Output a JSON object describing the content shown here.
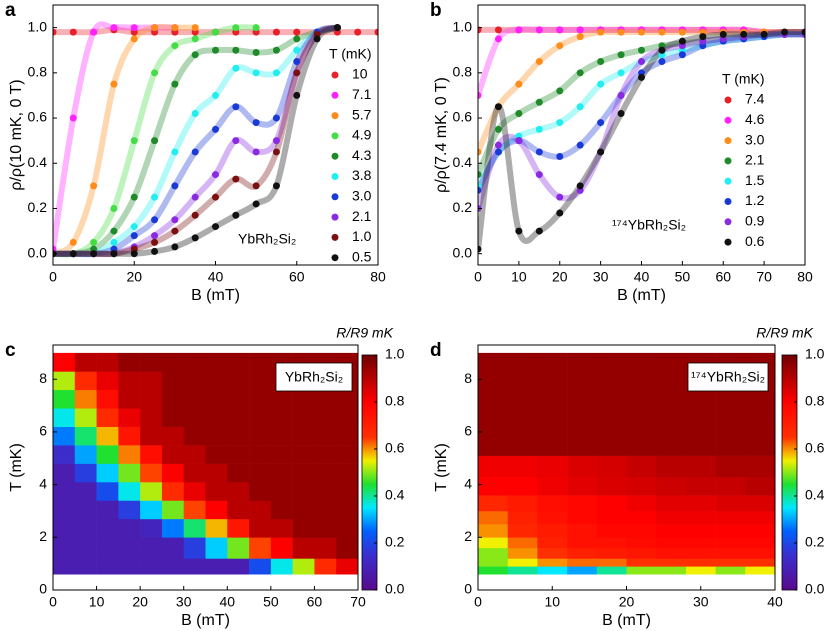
{
  "chart_data": [
    {
      "type": "scatter",
      "panel_label": "a",
      "xlabel": "B (mT)",
      "ylabel": "ρ/ρ(10 mK, 0 T)",
      "annotation": "YbRh₂Si₂",
      "legend_title": "T (mK)",
      "legend": "right",
      "x": [
        0,
        5,
        10,
        15,
        20,
        25,
        30,
        35,
        40,
        45,
        50,
        55,
        60,
        65,
        70,
        75,
        80
      ],
      "series": [
        {
          "name": "10",
          "color": "#e8202a",
          "values": [
            0.98,
            0.98,
            0.98,
            0.99,
            0.98,
            0.98,
            0.98,
            0.98,
            0.98,
            0.98,
            0.98,
            0.98,
            0.98,
            0.98,
            0.98,
            0.98,
            0.98
          ]
        },
        {
          "name": "7.1",
          "color": "#ff22ff",
          "values": [
            0.02,
            0.6,
            0.98,
            1.0,
            1.0,
            1.0,
            1.0,
            null,
            null,
            null,
            null,
            null,
            null,
            null,
            null,
            null,
            null
          ]
        },
        {
          "name": "5.7",
          "color": "#ff8c1a",
          "values": [
            0,
            0.05,
            0.3,
            0.75,
            0.95,
            1.0,
            1.0,
            1.0,
            null,
            null,
            null,
            null,
            null,
            null,
            null,
            null,
            null
          ]
        },
        {
          "name": "4.9",
          "color": "#44dd44",
          "values": [
            0,
            0,
            0.05,
            0.2,
            0.5,
            0.8,
            0.92,
            0.95,
            0.98,
            1.0,
            1.0,
            null,
            null,
            null,
            null,
            null,
            null
          ]
        },
        {
          "name": "4.3",
          "color": "#1e8a2a",
          "values": [
            0,
            0,
            0.02,
            0.1,
            0.25,
            0.5,
            0.75,
            0.88,
            0.9,
            0.9,
            0.89,
            0.9,
            0.95,
            0.98,
            1.0,
            null,
            null
          ]
        },
        {
          "name": "3.8",
          "color": "#22eef0",
          "values": [
            0,
            0,
            0,
            0.05,
            0.12,
            0.25,
            0.45,
            0.62,
            0.7,
            0.82,
            0.8,
            0.8,
            0.9,
            0.98,
            1.0,
            null,
            null
          ]
        },
        {
          "name": "3.0",
          "color": "#1a3ad8",
          "values": [
            0,
            0,
            0,
            0.02,
            0.08,
            0.15,
            0.3,
            0.45,
            0.55,
            0.65,
            0.58,
            0.6,
            0.85,
            0.98,
            1.0,
            null,
            null
          ]
        },
        {
          "name": "2.1",
          "color": "#8a2be2",
          "values": [
            0,
            0,
            0,
            0,
            0.03,
            0.08,
            0.15,
            0.25,
            0.35,
            0.5,
            0.45,
            0.5,
            0.8,
            0.97,
            1.0,
            null,
            null
          ]
        },
        {
          "name": "1.0",
          "color": "#7a1010",
          "values": [
            0,
            0,
            0,
            0,
            0.02,
            0.05,
            0.1,
            0.17,
            0.25,
            0.33,
            0.3,
            0.45,
            0.8,
            0.97,
            1.0,
            null,
            null
          ]
        },
        {
          "name": "0.5",
          "color": "#111111",
          "values": [
            0,
            0,
            0,
            0,
            0,
            0.01,
            0.03,
            0.07,
            0.12,
            0.17,
            0.22,
            0.3,
            0.7,
            0.95,
            1.0,
            null,
            null
          ]
        }
      ],
      "xlim": [
        0,
        80
      ],
      "ylim": [
        -0.05,
        1.1
      ],
      "xticks": [
        0,
        20,
        40,
        60,
        80
      ],
      "yticks": [
        {
          "value": 0,
          "label": "0.0"
        },
        0.2,
        0.4,
        0.6,
        0.8,
        {
          "value": 1,
          "label": "1.0"
        }
      ]
    },
    {
      "type": "scatter",
      "panel_label": "b",
      "xlabel": "B (mT)",
      "ylabel": "ρ/ρ(7.4 mK, 0 T)",
      "annotation": "¹⁷⁴YbRh₂Si₂",
      "legend_title": "T (mK)",
      "legend": "right",
      "x": [
        0,
        5,
        10,
        15,
        20,
        25,
        30,
        35,
        40,
        45,
        50,
        55,
        60,
        65,
        70,
        75,
        80
      ],
      "series": [
        {
          "name": "7.4",
          "color": "#e8202a",
          "values": [
            0.99,
            0.99,
            0.99,
            0.99,
            0.99,
            0.99,
            0.99,
            0.99,
            0.99,
            0.99,
            0.99,
            0.99,
            0.99,
            0.99,
            0.98,
            0.98,
            0.98
          ]
        },
        {
          "name": "4.6",
          "color": "#ff22ff",
          "values": [
            0.7,
            0.95,
            0.99,
            0.99,
            0.99,
            0.99,
            0.99,
            0.99,
            0.99,
            0.99,
            0.99,
            0.99,
            0.99,
            0.99,
            0.98,
            0.98,
            0.98
          ]
        },
        {
          "name": "3.0",
          "color": "#ff8c1a",
          "values": [
            0.45,
            0.65,
            0.75,
            0.85,
            0.92,
            0.96,
            0.98,
            0.98,
            0.98,
            0.98,
            0.98,
            0.98,
            0.98,
            0.98,
            0.98,
            0.98,
            0.98
          ]
        },
        {
          "name": "2.1",
          "color": "#1e8a2a",
          "values": [
            0.35,
            0.55,
            0.62,
            0.67,
            0.72,
            0.8,
            0.85,
            0.88,
            0.9,
            0.92,
            0.93,
            0.94,
            0.95,
            0.96,
            0.97,
            0.97,
            0.97
          ]
        },
        {
          "name": "1.5",
          "color": "#22eef0",
          "values": [
            0.3,
            0.45,
            0.52,
            0.55,
            0.58,
            0.65,
            0.75,
            0.8,
            0.85,
            0.88,
            0.9,
            0.92,
            0.94,
            0.95,
            0.96,
            0.97,
            0.97
          ]
        },
        {
          "name": "1.2",
          "color": "#1a3ad8",
          "values": [
            0.28,
            0.45,
            0.5,
            0.45,
            0.43,
            0.48,
            0.58,
            0.7,
            0.8,
            0.85,
            0.88,
            0.92,
            0.94,
            0.95,
            0.96,
            0.97,
            0.97
          ]
        },
        {
          "name": "0.9",
          "color": "#8a2be2",
          "values": [
            0.2,
            0.48,
            0.5,
            0.35,
            0.25,
            0.28,
            0.45,
            0.7,
            0.85,
            0.9,
            0.92,
            0.94,
            0.95,
            0.96,
            0.97,
            0.97,
            0.97
          ]
        },
        {
          "name": "0.6",
          "color": "#111111",
          "values": [
            0.02,
            0.65,
            0.1,
            0.1,
            0.18,
            0.3,
            0.45,
            0.62,
            0.78,
            0.9,
            0.94,
            0.96,
            0.97,
            0.97,
            0.97,
            0.98,
            0.98
          ]
        }
      ],
      "xlim": [
        0,
        80
      ],
      "ylim": [
        -0.05,
        1.1
      ],
      "xticks": [
        0,
        10,
        20,
        30,
        40,
        50,
        60,
        70,
        80
      ],
      "yticks": [
        {
          "value": 0,
          "label": "0.0"
        },
        0.2,
        0.4,
        0.6,
        0.8,
        {
          "value": 1,
          "label": "1.0"
        }
      ]
    },
    {
      "type": "heatmap",
      "panel_label": "c",
      "xlabel": "B (mT)",
      "ylabel": "T (mK)",
      "annotation": "YbRh₂Si₂",
      "colorbar_label": "R/R9 mK",
      "x_edges": [
        0,
        5,
        10,
        15,
        20,
        25,
        30,
        35,
        40,
        45,
        50,
        55,
        60,
        65,
        70
      ],
      "y_edges": [
        0.6,
        1.2,
        2,
        2.7,
        3.4,
        4.1,
        4.8,
        5.5,
        6.2,
        6.9,
        7.6,
        8.3,
        9
      ],
      "z": [
        [
          0.08,
          0.08,
          0.08,
          0.08,
          0.08,
          0.08,
          0.08,
          0.08,
          0.08,
          0.21,
          0.36,
          0.52,
          0.67,
          0.83
        ],
        [
          0.08,
          0.08,
          0.08,
          0.08,
          0.08,
          0.08,
          0.18,
          0.33,
          0.49,
          0.64,
          0.8,
          0.9,
          0.9,
          0.95
        ],
        [
          0.08,
          0.08,
          0.08,
          0.08,
          0.11,
          0.27,
          0.42,
          0.58,
          0.73,
          0.9,
          0.9,
          0.95,
          0.95,
          0.95
        ],
        [
          0.08,
          0.08,
          0.08,
          0.18,
          0.33,
          0.49,
          0.64,
          0.8,
          0.9,
          0.9,
          0.95,
          0.95,
          0.95,
          0.95
        ],
        [
          0.08,
          0.08,
          0.21,
          0.36,
          0.52,
          0.67,
          0.83,
          0.9,
          0.9,
          0.95,
          0.95,
          0.95,
          0.95,
          0.95
        ],
        [
          0.08,
          0.18,
          0.33,
          0.49,
          0.64,
          0.8,
          0.9,
          0.9,
          0.95,
          0.95,
          0.95,
          0.95,
          0.95,
          0.95
        ],
        [
          0.14,
          0.3,
          0.45,
          0.61,
          0.76,
          0.9,
          0.9,
          0.95,
          0.95,
          0.95,
          0.95,
          0.95,
          0.95,
          0.95
        ],
        [
          0.27,
          0.42,
          0.58,
          0.73,
          0.9,
          0.9,
          0.95,
          0.95,
          0.95,
          0.95,
          0.95,
          0.95,
          0.95,
          0.95
        ],
        [
          0.36,
          0.52,
          0.67,
          0.83,
          0.9,
          0.95,
          0.95,
          0.95,
          0.95,
          0.95,
          0.95,
          0.95,
          0.95,
          0.95
        ],
        [
          0.45,
          0.61,
          0.76,
          0.9,
          0.9,
          0.95,
          0.95,
          0.95,
          0.95,
          0.95,
          0.95,
          0.95,
          0.95,
          0.95
        ],
        [
          0.52,
          0.67,
          0.83,
          0.9,
          0.9,
          0.95,
          0.95,
          0.95,
          0.95,
          0.95,
          0.95,
          0.95,
          0.95,
          0.95
        ],
        [
          0.8,
          0.9,
          0.9,
          0.95,
          0.95,
          0.95,
          0.95,
          0.95,
          0.95,
          0.95,
          0.95,
          0.95,
          0.95,
          0.95
        ]
      ],
      "xlim": [
        0,
        70
      ],
      "ylim": [
        0,
        9.3
      ],
      "xticks": [
        0,
        10,
        20,
        30,
        40,
        50,
        60,
        70
      ],
      "yticks": [
        0,
        2,
        4,
        6,
        8
      ],
      "colorbar_lim": [
        0,
        1
      ],
      "colorbar_ticks": [
        {
          "value": 0,
          "label": "0.0"
        },
        0.2,
        0.4,
        0.6,
        0.8,
        {
          "value": 1,
          "label": "1.0"
        }
      ],
      "colorscale": [
        [
          0,
          "#5a0a8c"
        ],
        [
          0.15,
          "#3a2fd0"
        ],
        [
          0.25,
          "#0060ff"
        ],
        [
          0.35,
          "#00e8ff"
        ],
        [
          0.45,
          "#20e030"
        ],
        [
          0.55,
          "#f0f000"
        ],
        [
          0.65,
          "#ff3000"
        ],
        [
          0.8,
          "#ff0000"
        ],
        [
          1,
          "#700000"
        ]
      ]
    },
    {
      "type": "heatmap",
      "panel_label": "d",
      "xlabel": "B (mT)",
      "ylabel": "T (mK)",
      "annotation": "¹⁷⁴YbRh₂Si₂",
      "colorbar_label": "R/R9 mK",
      "x_edges": [
        0,
        4,
        8,
        12,
        16,
        20,
        24,
        28,
        32,
        36,
        40
      ],
      "y_edges": [
        0.6,
        0.9,
        1.2,
        1.6,
        2,
        2.5,
        3,
        3.6,
        4.3,
        5.1,
        9
      ],
      "z": [
        [
          0.45,
          0.4,
          0.35,
          0.3,
          0.4,
          0.5,
          0.5,
          0.55,
          0.5,
          0.55
        ],
        [
          0.5,
          0.55,
          0.6,
          0.62,
          0.62,
          0.65,
          0.65,
          0.65,
          0.65,
          0.65
        ],
        [
          0.5,
          0.6,
          0.65,
          0.7,
          0.72,
          0.73,
          0.75,
          0.75,
          0.75,
          0.75
        ],
        [
          0.55,
          0.62,
          0.7,
          0.75,
          0.75,
          0.77,
          0.78,
          0.78,
          0.78,
          0.78
        ],
        [
          0.6,
          0.68,
          0.72,
          0.75,
          0.78,
          0.78,
          0.8,
          0.8,
          0.8,
          0.8
        ],
        [
          0.62,
          0.7,
          0.75,
          0.78,
          0.8,
          0.8,
          0.82,
          0.82,
          0.82,
          0.82
        ],
        [
          0.68,
          0.72,
          0.76,
          0.78,
          0.8,
          0.82,
          0.84,
          0.84,
          0.85,
          0.85
        ],
        [
          0.8,
          0.8,
          0.82,
          0.84,
          0.85,
          0.86,
          0.87,
          0.88,
          0.88,
          0.9
        ],
        [
          0.82,
          0.82,
          0.83,
          0.85,
          0.86,
          0.88,
          0.9,
          0.9,
          0.92,
          0.92
        ],
        [
          0.95,
          0.95,
          0.95,
          0.95,
          0.95,
          0.95,
          0.95,
          0.95,
          0.95,
          0.95
        ]
      ],
      "xlim": [
        0,
        40
      ],
      "ylim": [
        0,
        9.3
      ],
      "xticks": [
        0,
        10,
        20,
        30,
        40
      ],
      "yticks": [
        0,
        2,
        4,
        6,
        8
      ],
      "colorbar_lim": [
        0,
        1
      ],
      "colorbar_ticks": [
        {
          "value": 0,
          "label": "0.0"
        },
        0.2,
        0.4,
        0.6,
        0.8,
        {
          "value": 1,
          "label": "1.0"
        }
      ],
      "colorscale": [
        [
          0,
          "#5a0a8c"
        ],
        [
          0.15,
          "#3a2fd0"
        ],
        [
          0.25,
          "#0060ff"
        ],
        [
          0.35,
          "#00e8ff"
        ],
        [
          0.45,
          "#20e030"
        ],
        [
          0.55,
          "#f0f000"
        ],
        [
          0.65,
          "#ff3000"
        ],
        [
          0.8,
          "#ff0000"
        ],
        [
          1,
          "#700000"
        ]
      ]
    }
  ]
}
